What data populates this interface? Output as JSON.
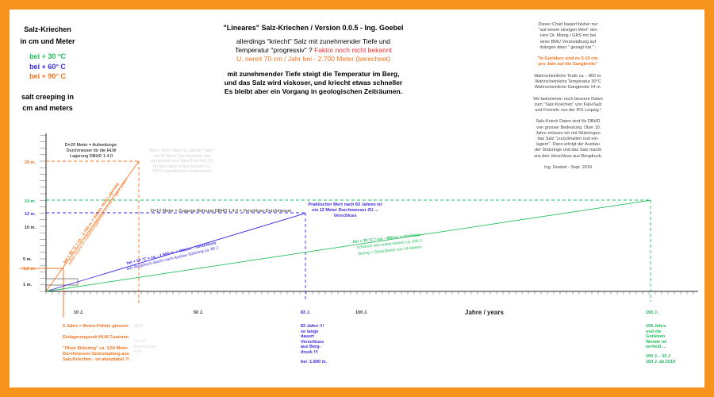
{
  "left": {
    "title": "Salz-Kriechen\nin cm und Meter",
    "l30": "bei + 30 °C",
    "l60": "bei + 60° C",
    "l90": "bei + 90° C",
    "en": "salt creeping in\ncm and meters"
  },
  "header": {
    "title": "\"Lineares\" Salz-Kriechen / Version 0.0.5 - Ing. Goebel",
    "p1": "allerdings \"kriecht\" Salz mit zunehmender Tiefe und\nTemperatur \"progressiv\" ?",
    "p1red": "Faktor noch nicht bekannt",
    "p2": "U. nennt 70 cm / Jahr bei - 2.700 Meter (berechnet)",
    "p3": "mit zunehmender Tiefe steigt die Temperatur im Berg,\nund das Salz wird viskoser, und kriecht etwas schneller\nEs bleibt aber ein Vorgang in geologischen Zeiträumen."
  },
  "right": {
    "a": "Dieser Chart basiert bisher nur\n\"auf einem einzigen Wert\" den\nHerr Dr. Mönig / GRS mir bei\neiner BMU Veranstaltung auf\ndrängen dann \" gesagt hat \" :",
    "quote": "\"In Gorleben sind es 5-10 cm.\npro Jahr auf die Gangbreite\"",
    "b": "Wahrscheinliche Teufe ca. - 860 m.\nWahrscheinliche Temperatur 30°C\nWahrscheinliche Gangbreite 14 m.",
    "c": "Wir bekommen noch bessere Daten\nzum \"Salz-Kriechen\" von Kali+Salz\nund Formeln von der IFG Leipzig !",
    "d": "Salz-Kriech Daten sind für DBHD\nvon grosser Bedeutung. Über 10\nJahre müssen wir mit Stützringen\ndas Salz \"zurückhalten und ein-\nlagern\". Dann erfolgt der Ausbau\nder Stützringe und das Salz macht\nuns den Verschluss aus Bergdruck.",
    "sig": "Ing. Goebel - Sept. 2019"
  },
  "notes": {
    "d20": "D=20 Meter = Aufweitungs-\nDurchmesser für die HLW\nLagerung DBHD 1.4.0",
    "theor": "theor. Wert. Nach 32 Jahren \"wäre\"\nein 20 Meter Durchmesser aus\nBergdruck und Salz-Kriechen ZU.\nIst aber alles schon binnen 5 J.\n100 % raumfüllend ausbetoniert.",
    "d12": "D=12 Meter = Zugangs-Bohrung DBHD 1.4.0 = Verschluss-Durchmesser",
    "prakt": "Praktischer Wert nach 83 Jahren ist\nein 12 Meter Durchmesser ZU ...\nVerschluss",
    "o1": "bei + 90 °C = ca. - 2.700 m. = Glasin. HLW Lagerung",
    "o2": "selbst Stütze im Aufweitungsbereich D = 20 m. ganz unten",
    "b1": "bei + 60 °C = ca. - 1.900 m. = Glasin. - Verschluss",
    "b2": "aus Bergdruck dauert nach Ausbau Stützring ca. 80 J.",
    "g1": "bei + 30 °C = ca. - 900 m. = Gorleben",
    "g2": "schliesst sich selbst binnen ca. 190 J.",
    "g3": "Bezug = Gang-Breite von 14 Metern",
    "xlabel": "Jahre / years",
    "beton": "5 Jahre = Beton-Pellets giessen",
    "einl": "Einlagerungszeit HLW Castoren",
    "ohne": "\"Ohne Stützring\" ca. 3,50 Meter\nDurchmesser-Schrumpfung aus\nSalz-Kriechen - ist akzeptabel ?!",
    "j32": "32 J.",
    "theo2": "nur ein\ntheoretischer\nWert",
    "j83": "83 Jahre !!!\nso lange\ndauert\nVerschluss\naus Berg-\ndruck !!!",
    "m1800": "bei -1.800 m.",
    "j190": "190 Jahre\nund die\nGorleben\nWunde ist\nverheilt ...",
    "j190b": "190 J. -  30 J\n160 J. ab 2019"
  },
  "chart_data": {
    "type": "line",
    "xlabel": "Jahre / years",
    "ylabel": "",
    "x_ticks": [
      "10 J.",
      "50 J.",
      "83 J.",
      "100 J.",
      "190 J."
    ],
    "y_ticks": [
      "1 m.",
      "3,5 m.",
      "5 m.",
      "10 m.",
      "12 m.",
      "14 m.",
      "20 m."
    ],
    "series": [
      {
        "name": "bei + 90° C",
        "color": "#f7731d",
        "x": [
          0,
          32
        ],
        "y": [
          0,
          20
        ]
      },
      {
        "name": "bei + 60° C",
        "color": "#3b2bea",
        "x": [
          0,
          83
        ],
        "y": [
          0,
          12
        ]
      },
      {
        "name": "bei + 30 °C",
        "color": "#1fbf5a",
        "x": [
          0,
          190
        ],
        "y": [
          0,
          14
        ]
      }
    ]
  }
}
